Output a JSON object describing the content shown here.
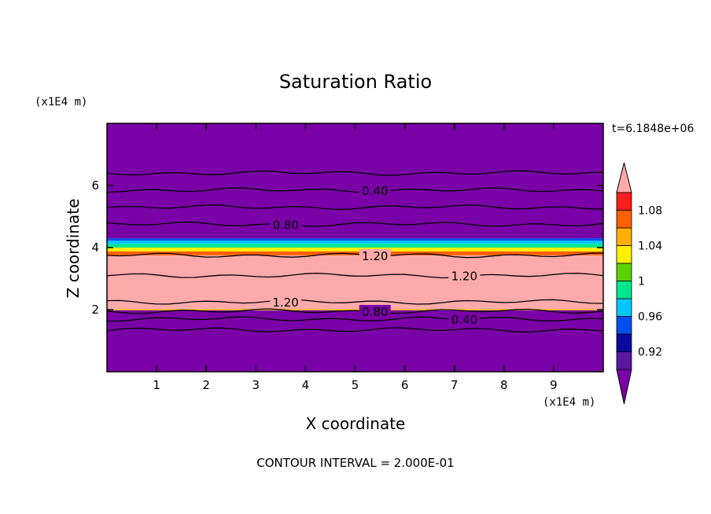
{
  "chart_data": {
    "type": "heatmap",
    "title": "Saturation Ratio",
    "xlabel": "X coordinate",
    "ylabel": "Z coordinate",
    "x_units": "(x1E4 m)",
    "y_units": "(x1E4 m)",
    "time_label": "t=6.1848e+06",
    "footer": "CONTOUR INTERVAL = 2.000E-01",
    "xlim": [
      0,
      10
    ],
    "ylim": [
      0,
      8
    ],
    "x_ticks": [
      "1",
      "2",
      "3",
      "4",
      "5",
      "6",
      "7",
      "8",
      "9"
    ],
    "y_ticks": [
      "2",
      "4",
      "6"
    ],
    "colorbar": {
      "levels": [
        0.9,
        0.92,
        0.94,
        0.96,
        0.98,
        1.0,
        1.02,
        1.04,
        1.06,
        1.08,
        1.1
      ],
      "tick_labels": [
        "0.92",
        "0.96",
        "1",
        "1.04",
        "1.08"
      ],
      "colors": [
        "#5a16a0",
        "#0a0aa0",
        "#0050f0",
        "#00c8ff",
        "#00e68c",
        "#5ad200",
        "#fff000",
        "#ffb000",
        "#ff6000",
        "#ff1e1e"
      ],
      "under_color": "#7a00a8",
      "over_color": "#ffaaaa"
    },
    "bands": [
      {
        "z0": 0.0,
        "z1": 1.98,
        "color": "#7a00a8"
      },
      {
        "z0": 1.98,
        "z1": 2.02,
        "color": "#ffb000"
      },
      {
        "z0": 2.02,
        "z1": 3.75,
        "color": "#ffaaaa"
      },
      {
        "z0": 3.75,
        "z1": 3.88,
        "color": "#ff6000"
      },
      {
        "z0": 3.88,
        "z1": 4.0,
        "color": "#fff000"
      },
      {
        "z0": 4.0,
        "z1": 4.12,
        "color": "#00e68c"
      },
      {
        "z0": 4.12,
        "z1": 4.22,
        "color": "#00c8ff"
      },
      {
        "z0": 4.22,
        "z1": 4.3,
        "color": "#0050f0"
      },
      {
        "z0": 4.3,
        "z1": 8.0,
        "color": "#7a00a8"
      }
    ],
    "contours": [
      {
        "z": 6.4,
        "label": ""
      },
      {
        "z": 5.85,
        "label": "0.40"
      },
      {
        "z": 5.3,
        "label": ""
      },
      {
        "z": 4.75,
        "label": "0.80"
      },
      {
        "z": 3.75,
        "label": "1.20"
      },
      {
        "z": 3.1,
        "label": "1.20"
      },
      {
        "z": 2.25,
        "label": "1.20"
      },
      {
        "z": 1.95,
        "label": "0.80"
      },
      {
        "z": 1.7,
        "label": "0.40"
      },
      {
        "z": 1.35,
        "label": ""
      }
    ]
  }
}
